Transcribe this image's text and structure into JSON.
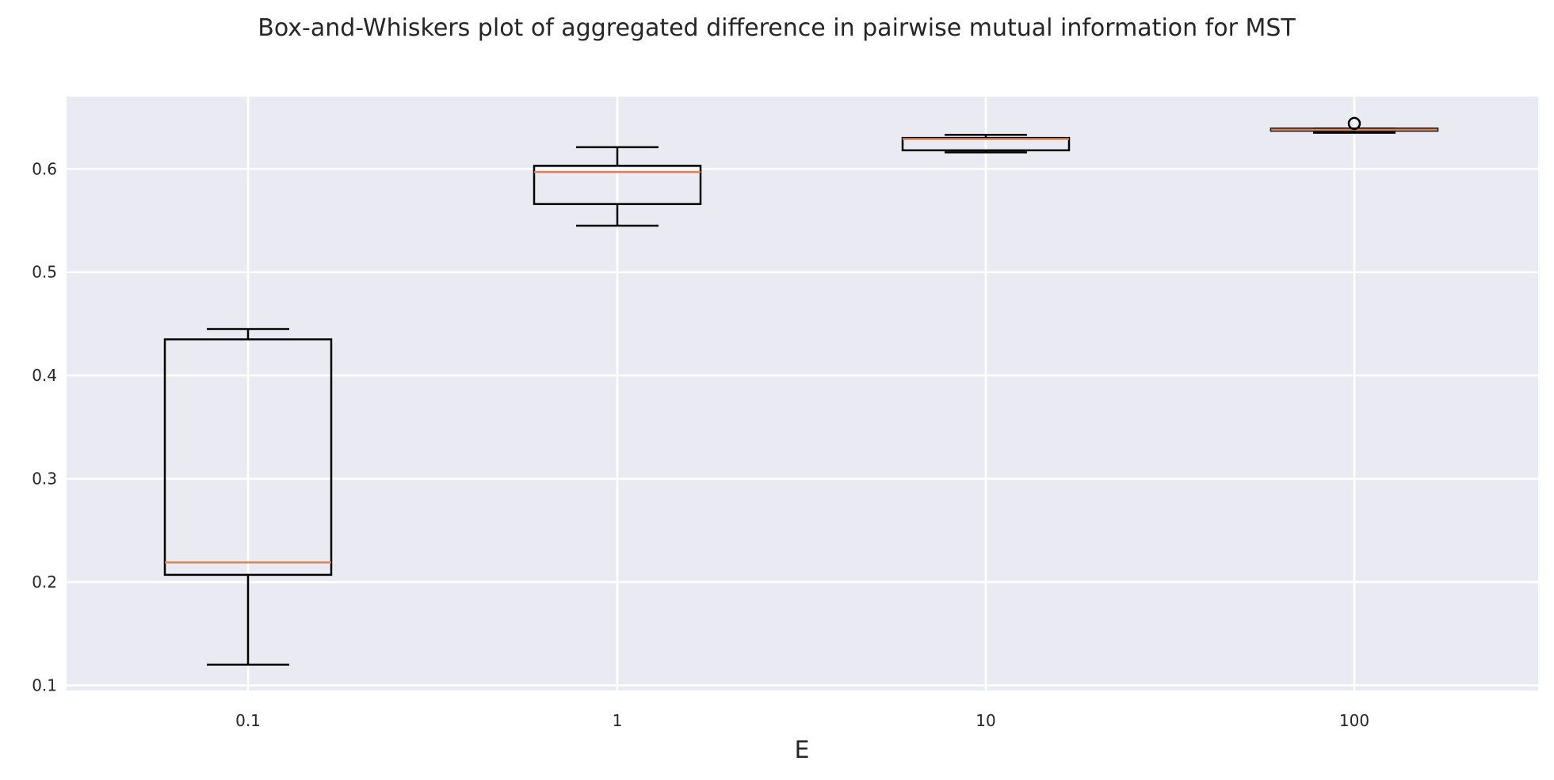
{
  "chart_data": {
    "type": "box",
    "title": "Box-and-Whiskers plot of aggregated difference in pairwise mutual information for MST",
    "xlabel": "E",
    "ylabel": "",
    "categories": [
      "0.1",
      "1",
      "10",
      "100"
    ],
    "ylim": [
      0.095,
      0.67
    ],
    "yticks": [
      0.1,
      0.2,
      0.3,
      0.4,
      0.5,
      0.6
    ],
    "ytick_labels": [
      "0.1",
      "0.2",
      "0.3",
      "0.4",
      "0.5",
      "0.6"
    ],
    "grid": true,
    "boxes": [
      {
        "category": "0.1",
        "whisker_low": 0.12,
        "q1": 0.207,
        "median": 0.219,
        "q3": 0.435,
        "whisker_high": 0.445,
        "outliers": []
      },
      {
        "category": "1",
        "whisker_low": 0.545,
        "q1": 0.566,
        "median": 0.597,
        "q3": 0.603,
        "whisker_high": 0.621,
        "outliers": []
      },
      {
        "category": "10",
        "whisker_low": 0.616,
        "q1": 0.618,
        "median": 0.629,
        "q3": 0.63,
        "whisker_high": 0.633,
        "outliers": []
      },
      {
        "category": "100",
        "whisker_low": 0.635,
        "q1": 0.637,
        "median": 0.638,
        "q3": 0.639,
        "whisker_high": 0.639,
        "outliers": [
          0.644
        ]
      }
    ],
    "colors": {
      "background": "#eaeaf2",
      "grid": "#ffffff",
      "box": "#000000",
      "median": "#dd8452"
    }
  }
}
